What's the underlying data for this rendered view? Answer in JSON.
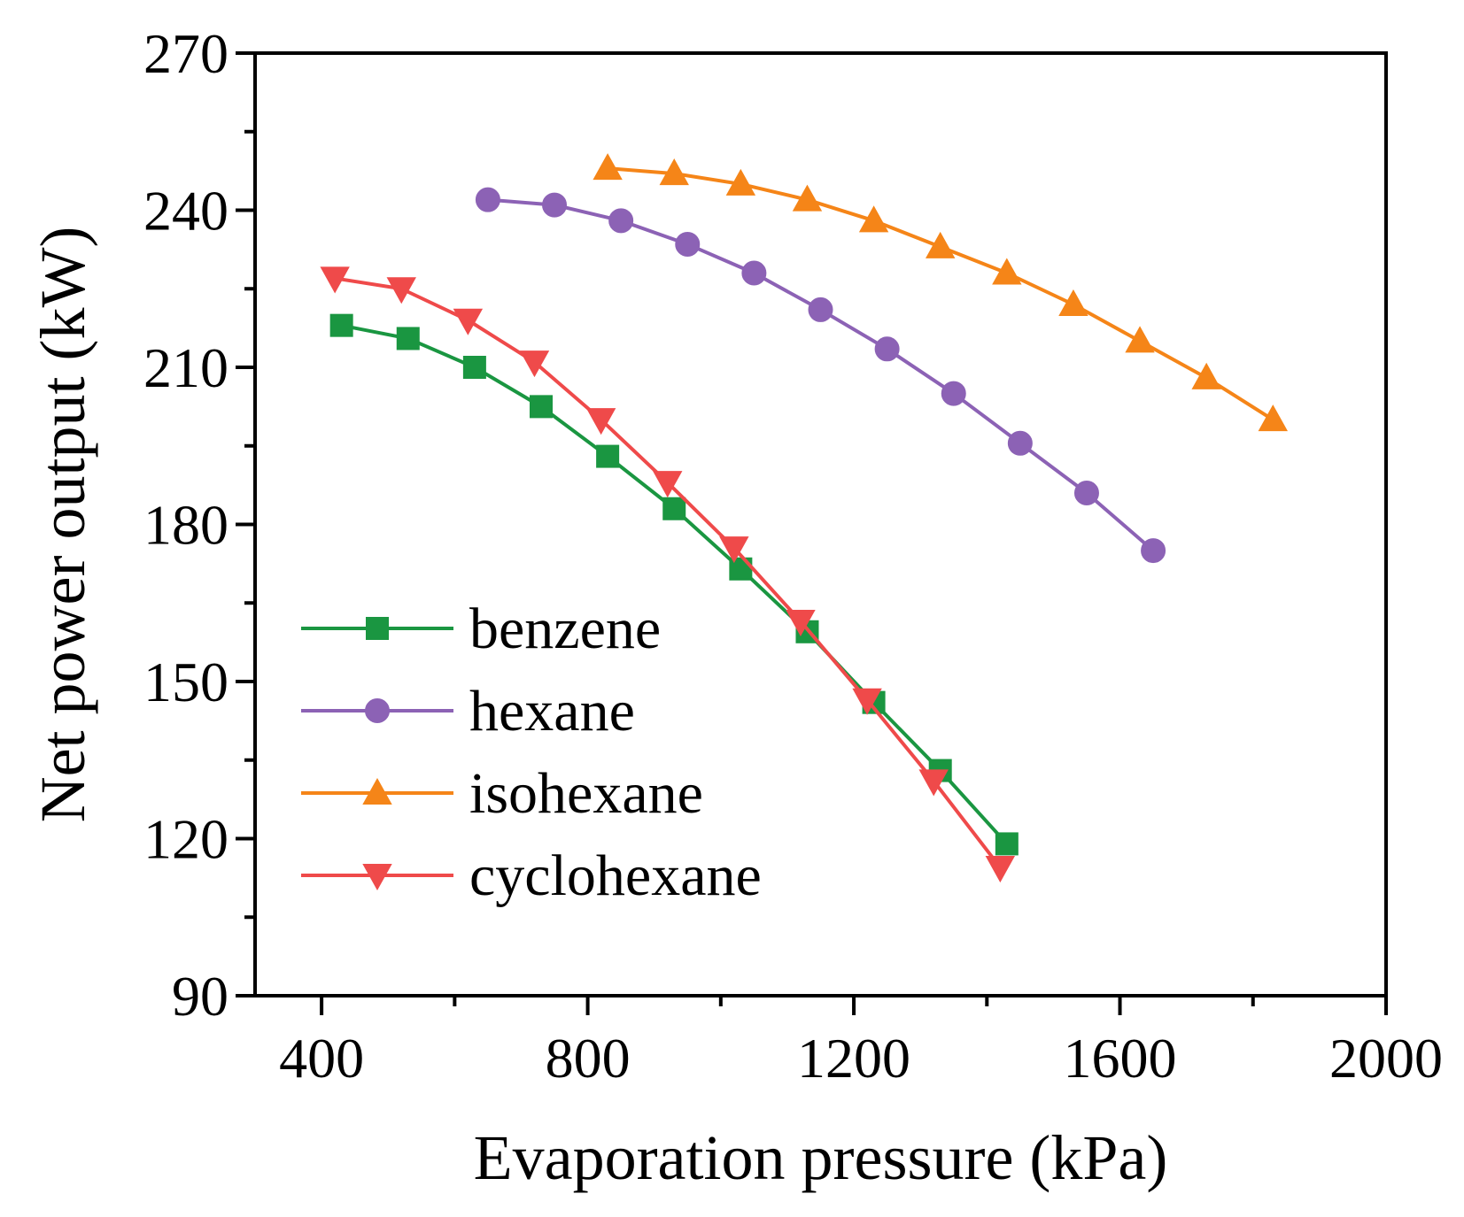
{
  "chart_data": {
    "type": "line",
    "title": "",
    "xlabel": "Evaporation pressure (kPa)",
    "ylabel": "Net power output (kW)",
    "xlim": [
      300,
      2000
    ],
    "ylim": [
      90,
      270
    ],
    "xticks": [
      400,
      800,
      1200,
      1600,
      2000
    ],
    "xtick_labels": [
      "400",
      "800",
      "1200",
      "1600",
      "2000"
    ],
    "yticks": [
      90,
      120,
      150,
      180,
      210,
      240,
      270
    ],
    "ytick_labels": [
      "90",
      "120",
      "150",
      "180",
      "210",
      "240",
      "270"
    ],
    "x_minor_ticks": [
      600,
      1000,
      1400,
      1800
    ],
    "y_minor_ticks": [
      105,
      135,
      165,
      195,
      225,
      255
    ],
    "grid": false,
    "legend_position": "lower-left",
    "series": [
      {
        "name": "benzene",
        "color": "#1a9641",
        "marker": "square",
        "x": [
          430,
          530,
          630,
          730,
          830,
          930,
          1030,
          1130,
          1230,
          1330,
          1430
        ],
        "y": [
          218,
          215.5,
          210,
          202.5,
          193,
          183,
          171.5,
          159.5,
          146,
          133,
          119
        ]
      },
      {
        "name": "hexane",
        "color": "#8c62b5",
        "marker": "circle",
        "x": [
          650,
          750,
          850,
          950,
          1050,
          1150,
          1250,
          1350,
          1450,
          1550,
          1650
        ],
        "y": [
          242,
          241,
          238,
          233.5,
          228,
          221,
          213.5,
          205,
          195.5,
          186,
          175
        ]
      },
      {
        "name": "isohexane",
        "color": "#f58518",
        "marker": "triangle-up",
        "x": [
          830,
          930,
          1030,
          1130,
          1230,
          1330,
          1430,
          1530,
          1630,
          1730,
          1830
        ],
        "y": [
          248,
          247,
          245,
          242,
          238,
          233,
          228,
          222,
          215,
          208,
          200
        ]
      },
      {
        "name": "cyclohexane",
        "color": "#ef4a4a",
        "marker": "triangle-down",
        "x": [
          420,
          520,
          620,
          720,
          820,
          920,
          1020,
          1120,
          1220,
          1320,
          1420
        ],
        "y": [
          227,
          225,
          219,
          211,
          200,
          188,
          175.5,
          161.5,
          146.5,
          131,
          114.5
        ]
      }
    ]
  }
}
